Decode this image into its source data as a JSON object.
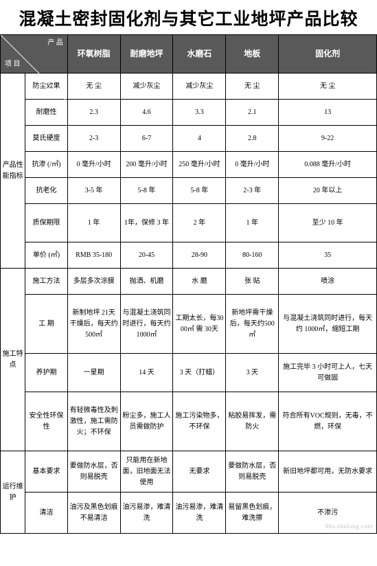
{
  "title": "混凝土密封固化剂与其它工业地坪产品比较",
  "corner_top": "产  品",
  "corner_bottom": "项  目",
  "cols": [
    "环氧树脂",
    "耐磨地坪",
    "水磨石",
    "地板",
    "固化剂"
  ],
  "groups": [
    {
      "label": "产品性能指标",
      "rows": [
        {
          "label": "防尘效果",
          "cells": [
            "无    尘",
            "减少灰尘",
            "减少灰尘",
            "无    尘",
            "无    尘"
          ]
        },
        {
          "label": "耐磨性",
          "cells": [
            "2.3",
            "4.6",
            "3.3",
            "2.1",
            "13"
          ]
        },
        {
          "label": "莫氏硬度",
          "cells": [
            "2-3",
            "6-7",
            "4",
            "2.8",
            "9-22"
          ]
        },
        {
          "label": "抗渗 (/㎡)",
          "cells": [
            "0 毫升/小时",
            "200 毫升/小时",
            "250 毫升/小时",
            "0 毫升/小时",
            "0.088 毫升/小时"
          ]
        },
        {
          "label": "抗老化",
          "cells": [
            "3-5 年",
            "5-8 年",
            "5-8 年",
            "2-3 年",
            "20 年以上"
          ]
        },
        {
          "label": "质保期限",
          "cells": [
            "1 年",
            "1年，保修 3 年",
            "2 年",
            "1 年",
            "至少 10 年"
          ]
        },
        {
          "label": "单价 (㎡)",
          "cells": [
            "RMB 35-180",
            "20-45",
            "28-90",
            "80-160",
            "35"
          ]
        }
      ]
    },
    {
      "label": "施工特点",
      "rows": [
        {
          "label": "施工方法",
          "cells": [
            "多层多次涂膜",
            "抛洒、机磨",
            "水 磨",
            "张 贴",
            "喷涂"
          ]
        },
        {
          "label": "工 期",
          "cells": [
            "新制地坪 21天干燥后，每天约 500㎡",
            "与混凝土浇筑同时进行，每天约 1000㎡",
            "工期太长，每3000㎡ 需 30天",
            "新地坪需干燥后，每天约500㎡",
            "与混凝土浇筑同时进行，每天约 1000㎡，缩短工期"
          ]
        },
        {
          "label": "养护期",
          "cells": [
            "一星期",
            "14 天",
            "3 天（打蜡）",
            "3 天",
            "施工完毕 3 小时可上人，七天可做固"
          ]
        },
        {
          "label": "安全性环保性",
          "cells": [
            "有轻微毒性及刺激性，施工需防火；不环保",
            "粉尘多，施工人员需做防护",
            "施工污染物多，不环保",
            "粘胶易挥发，需防火",
            "符合所有VOC规则，无毒，不燃，环保"
          ]
        }
      ]
    },
    {
      "label": "运行维护",
      "rows": [
        {
          "label": "基本要求",
          "cells": [
            "要做防水层，否则易脱壳",
            "只能用在新地面，旧地面无法使用",
            "无要求",
            "要做防水层，否则易脱壳",
            "新旧地坪都可用，无防水要求"
          ]
        },
        {
          "label": "清洁",
          "cells": [
            "油污及黑色划痕不易清洁",
            "油污易渗，难清洗",
            "油污易渗，难清洗",
            "易留黑色划痕，难洗擦",
            "不渗污"
          ]
        }
      ]
    }
  ],
  "row_heights": {
    "产品性能指标": {
      "default": 38,
      "质保期限": 56
    },
    "施工特点": {
      "default": 38,
      "工 期": 86,
      "养护期": 56,
      "安全性环保性": 86
    },
    "运行维护": {
      "default": 60
    }
  },
  "watermark": "bbs.zhulong.com",
  "colors": {
    "header_bg": "#595959",
    "header_fg": "#ffffff",
    "border": "#000000"
  }
}
